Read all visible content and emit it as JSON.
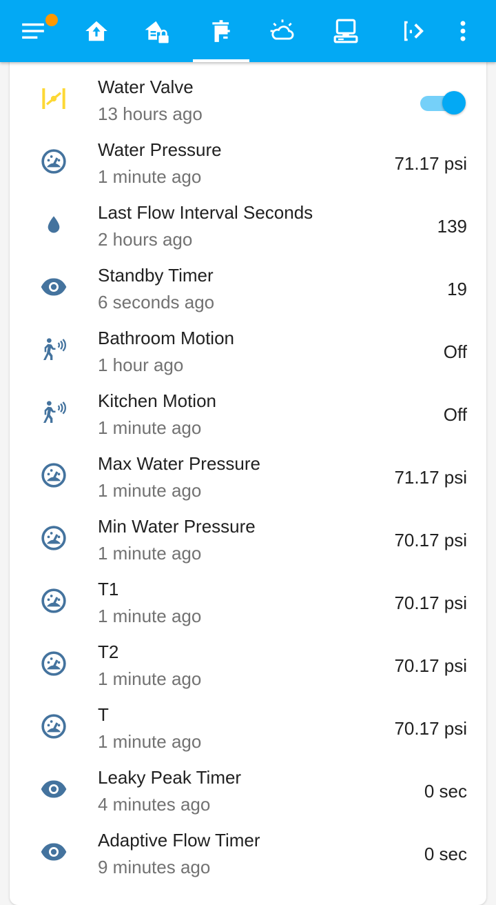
{
  "colors": {
    "appbar": "#03a9f4",
    "entity_icon": "#44739e",
    "valve_icon_on": "#fdd835",
    "badge": "#ff9800"
  },
  "tabs": [
    {
      "icon": "home-icon"
    },
    {
      "icon": "home-lock-icon"
    },
    {
      "icon": "faucet-icon"
    },
    {
      "icon": "weather-partly-cloudy-icon"
    },
    {
      "icon": "desktop-icon"
    },
    {
      "icon": "door-arrow-icon"
    }
  ],
  "entities": [
    {
      "name": "Water Valve",
      "time": "13 hours ago",
      "icon": "valve-icon",
      "toggle": true
    },
    {
      "name": "Water Pressure",
      "time": "1 minute ago",
      "value": "71.17 psi",
      "icon": "gauge-icon"
    },
    {
      "name": "Last Flow Interval Seconds",
      "time": "2 hours ago",
      "value": "139",
      "icon": "water-drop-icon"
    },
    {
      "name": "Standby Timer",
      "time": "6 seconds ago",
      "value": "19",
      "icon": "eye-icon"
    },
    {
      "name": "Bathroom Motion",
      "time": "1 hour ago",
      "value": "Off",
      "icon": "motion-sensor-icon"
    },
    {
      "name": "Kitchen Motion",
      "time": "1 minute ago",
      "value": "Off",
      "icon": "motion-sensor-icon"
    },
    {
      "name": "Max Water Pressure",
      "time": "1 minute ago",
      "value": "71.17 psi",
      "icon": "gauge-icon"
    },
    {
      "name": "Min Water Pressure",
      "time": "1 minute ago",
      "value": "70.17 psi",
      "icon": "gauge-icon"
    },
    {
      "name": "T1",
      "time": "1 minute ago",
      "value": "70.17 psi",
      "icon": "gauge-icon"
    },
    {
      "name": "T2",
      "time": "1 minute ago",
      "value": "70.17 psi",
      "icon": "gauge-icon"
    },
    {
      "name": "T",
      "time": "1 minute ago",
      "value": "70.17 psi",
      "icon": "gauge-icon"
    },
    {
      "name": "Leaky Peak Timer",
      "time": "4 minutes ago",
      "value": "0 sec",
      "icon": "eye-icon"
    },
    {
      "name": "Adaptive Flow Timer",
      "time": "9 minutes ago",
      "value": "0 sec",
      "icon": "eye-icon"
    }
  ]
}
